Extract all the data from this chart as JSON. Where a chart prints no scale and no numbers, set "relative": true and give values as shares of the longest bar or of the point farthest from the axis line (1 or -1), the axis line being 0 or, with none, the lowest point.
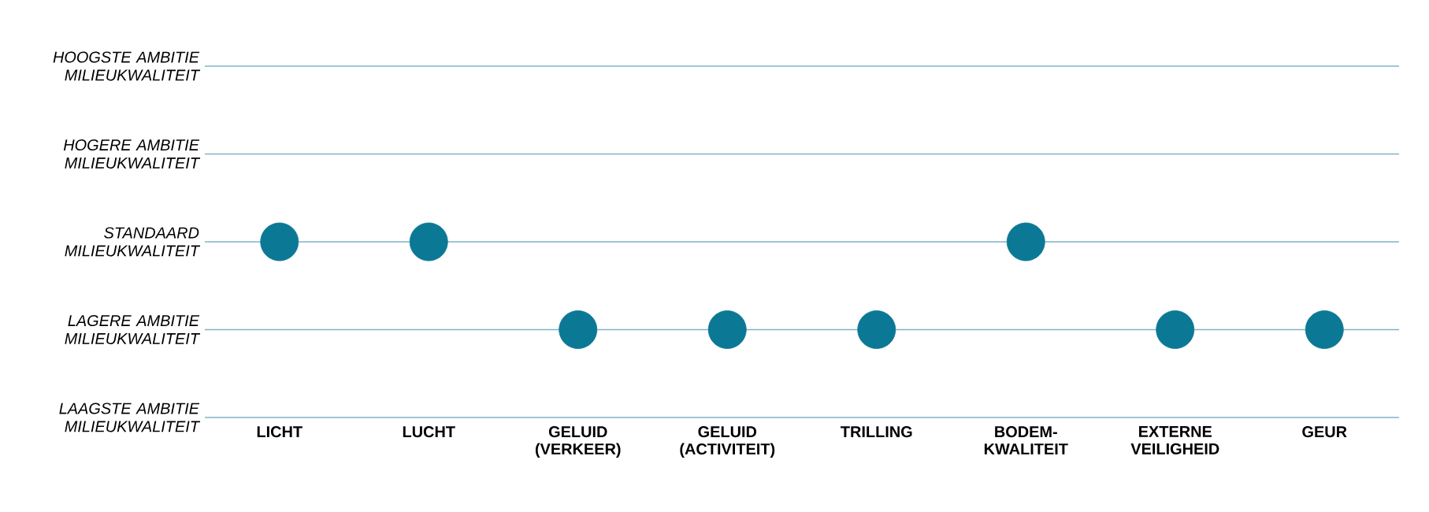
{
  "chart_data": {
    "type": "scatter",
    "categories": [
      "LICHT",
      "LUCHT",
      "GELUID (VERKEER)",
      "GELUID (ACTIVITEIT)",
      "TRILLING",
      "BODEM-KWALITEIT",
      "EXTERNE VEILIGHEID",
      "GEUR"
    ],
    "values": [
      1,
      1,
      0.5,
      0.5,
      0.5,
      1,
      0.5,
      0.5
    ],
    "relative": true,
    "color": "#0b7895",
    "marker": "circle",
    "ref_lines": [
      {
        "axis": "y",
        "value": 2,
        "label": "HOOGSTE AMBITIE MILIEUKWALITEIT",
        "color": "#7fb3c4"
      },
      {
        "axis": "y",
        "value": 1.5,
        "label": "HOGERE AMBITIE MILIEUKWALITEIT",
        "color": "#7fb3c4"
      },
      {
        "axis": "y",
        "value": 1,
        "label": "STANDAARD MILIEUKWALITEIT",
        "color": "#7fb3c4"
      },
      {
        "axis": "y",
        "value": 0.5,
        "label": "LAGERE AMBITIE MILIEUKWALITEIT",
        "color": "#7fb3c4"
      }
    ],
    "annotations": [
      "LAAGSTE AMBITIE MILIEUKWALITEIT"
    ]
  }
}
